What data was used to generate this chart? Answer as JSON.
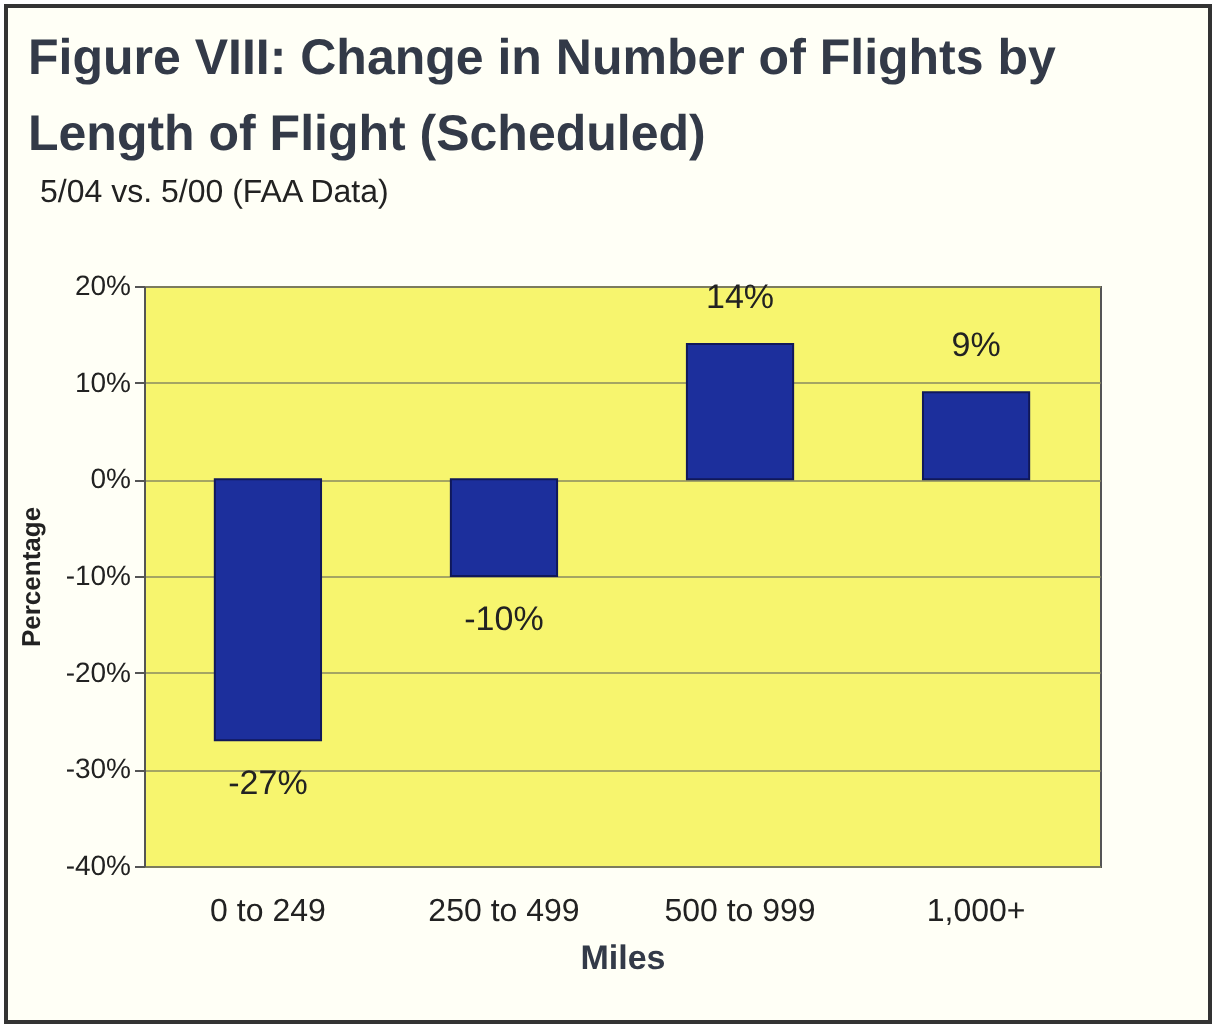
{
  "chart_data": {
    "type": "bar",
    "title": "Figure VIII:  Change in Number of Flights by Length of Flight (Scheduled)",
    "subtitle": "5/04 vs. 5/00 (FAA Data)",
    "xlabel": "Miles",
    "ylabel": "Percentage",
    "categories": [
      "0 to 249",
      "250 to 499",
      "500 to 999",
      "1,000+"
    ],
    "values": [
      -27,
      -10,
      14,
      9
    ],
    "color": "#1c2f9c",
    "value_labels": [
      "-27%",
      "-10%",
      "14%",
      "9%"
    ],
    "ylim": [
      -40,
      20
    ],
    "yticks": [
      {
        "value": -40,
        "label": "-40%"
      },
      {
        "value": -30,
        "label": "-30%"
      },
      {
        "value": -20,
        "label": "-20%"
      },
      {
        "value": -10,
        "label": "-10%"
      },
      {
        "value": 0,
        "label": "0%"
      },
      {
        "value": 10,
        "label": "10%"
      },
      {
        "value": 20,
        "label": "20%"
      }
    ],
    "grid": "y"
  }
}
